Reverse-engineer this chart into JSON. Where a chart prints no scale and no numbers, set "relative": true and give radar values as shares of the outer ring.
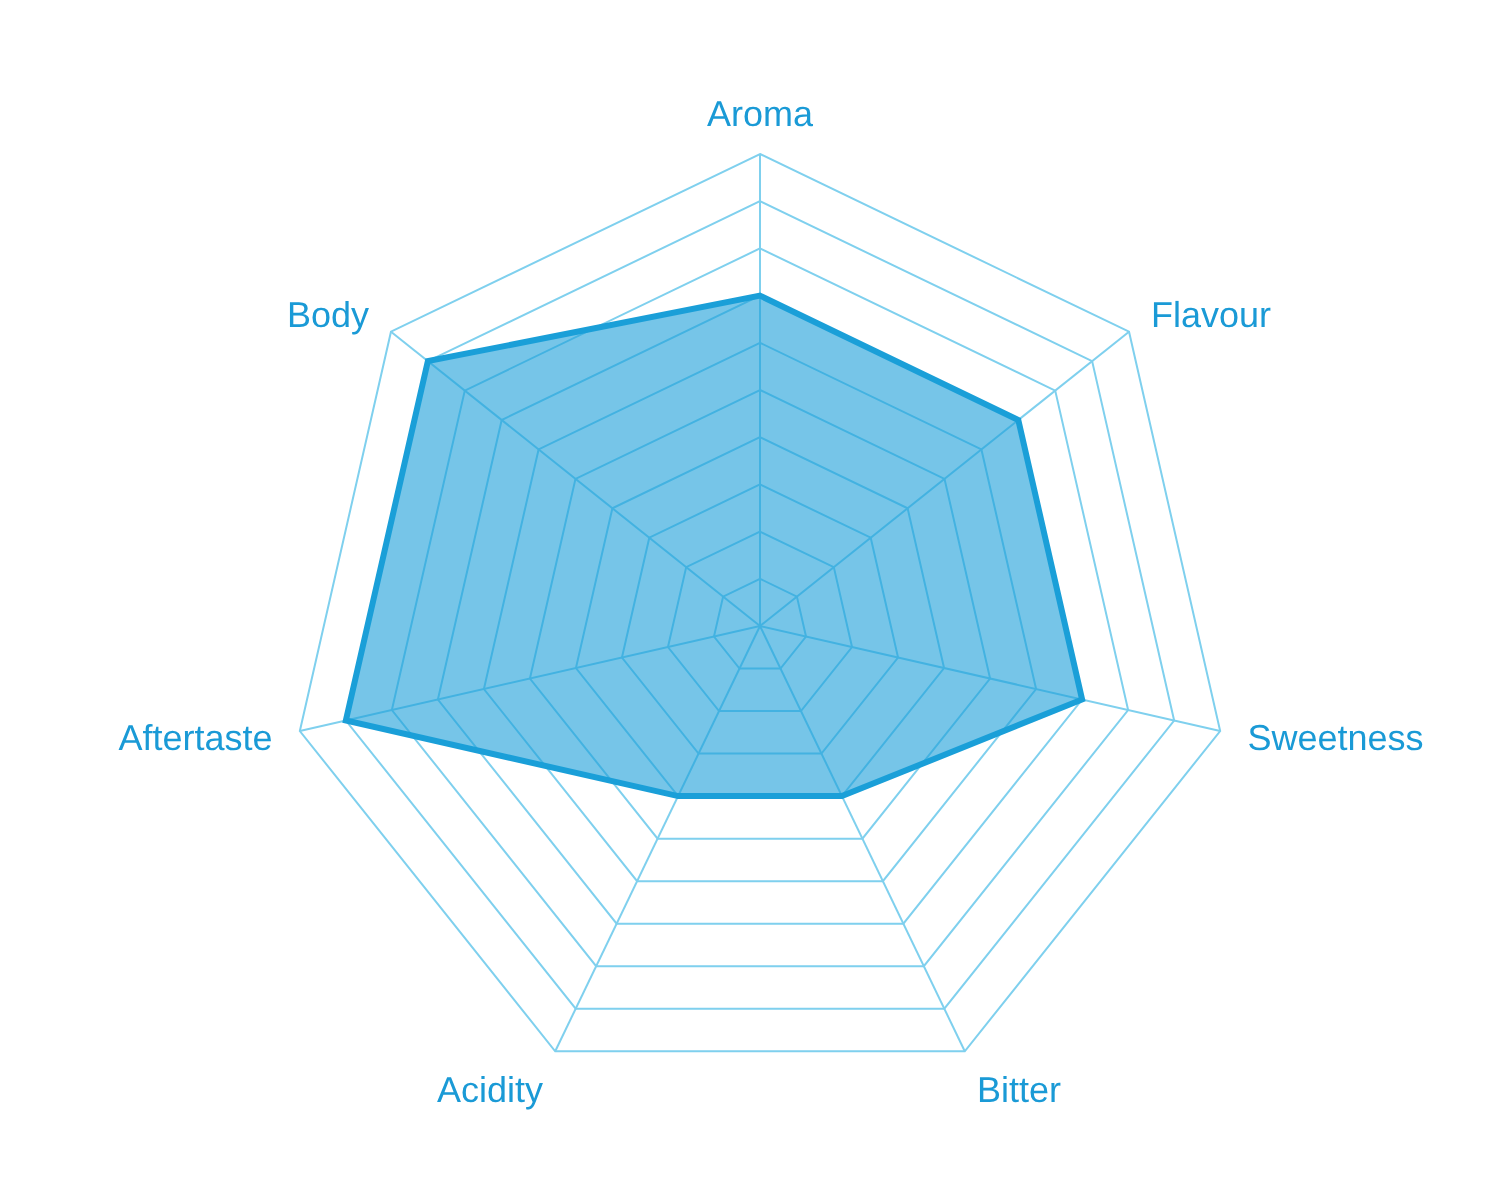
{
  "chart_data": {
    "type": "radar",
    "relative": true,
    "categories": [
      "Aroma",
      "Flavour",
      "Sweetness",
      "Bitter",
      "Acidity",
      "Aftertaste",
      "Body"
    ],
    "series": [
      {
        "color": "#1a9fd8",
        "values": [
          0.7,
          0.7,
          0.7,
          0.4,
          0.4,
          0.9,
          0.9
        ]
      }
    ],
    "grid": true,
    "marker": "none"
  }
}
